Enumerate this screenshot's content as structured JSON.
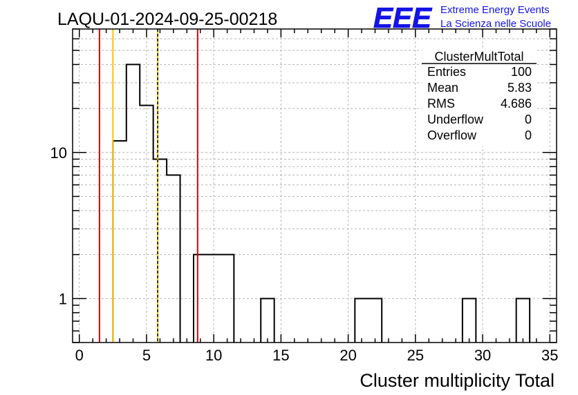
{
  "header": {
    "run_title": "LAQU-01-2024-09-25-00218",
    "logo_text": "EEE",
    "logo_line1": "Extreme Energy Events",
    "logo_line2": "La Scienza nelle Scuole"
  },
  "stats_box": {
    "title": "ClusterMultTotal",
    "rows": [
      {
        "label": "Entries",
        "value": "100"
      },
      {
        "label": "Mean",
        "value": "5.83"
      },
      {
        "label": "RMS",
        "value": "4.686"
      },
      {
        "label": "Underflow",
        "value": "0"
      },
      {
        "label": "Overflow",
        "value": "0"
      }
    ]
  },
  "colors": {
    "histogram": "#000000",
    "red_lines": "#dd0000",
    "yellow_lines": "#f0c800",
    "logo": "#1414e6",
    "grid": "#b4b4b4"
  },
  "chart_data": {
    "type": "bar",
    "histogram": true,
    "xlabel": "Cluster multiplicity Total",
    "ylabel": "",
    "xlim": [
      -0.5,
      35.5
    ],
    "ylog": true,
    "ylim": [
      0.5,
      70
    ],
    "grid": true,
    "x_ticks": [
      "0",
      "5",
      "10",
      "15",
      "20",
      "25",
      "30",
      "35"
    ],
    "y_ticks": [
      "1",
      "10"
    ],
    "bin_width": 1,
    "bins": [
      {
        "low": 2.5,
        "count": 12
      },
      {
        "low": 3.5,
        "count": 40
      },
      {
        "low": 4.5,
        "count": 21
      },
      {
        "low": 5.5,
        "count": 9
      },
      {
        "low": 6.5,
        "count": 7
      },
      {
        "low": 8.5,
        "count": 2
      },
      {
        "low": 9.5,
        "count": 2
      },
      {
        "low": 10.5,
        "count": 2
      },
      {
        "low": 13.5,
        "count": 1
      },
      {
        "low": 20.5,
        "count": 1
      },
      {
        "low": 21.5,
        "count": 1
      },
      {
        "low": 28.5,
        "count": 1
      },
      {
        "low": 32.5,
        "count": 1
      }
    ],
    "vertical_lines": [
      {
        "x": 1.5,
        "color": "red",
        "style": "solid"
      },
      {
        "x": 2.5,
        "color": "yellow",
        "style": "solid"
      },
      {
        "x": 5.83,
        "color": "yellow",
        "style": "solid"
      },
      {
        "x": 5.83,
        "color": "black",
        "style": "dashed"
      },
      {
        "x": 8.8,
        "color": "red",
        "style": "solid"
      }
    ]
  }
}
